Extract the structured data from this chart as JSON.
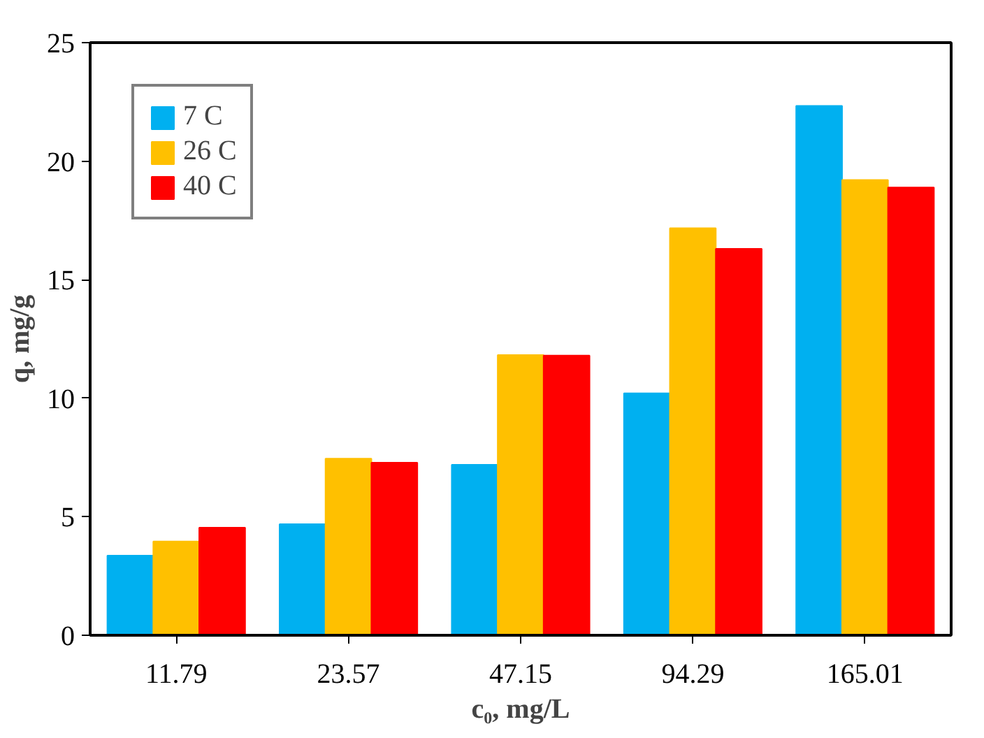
{
  "chart_data": {
    "type": "bar",
    "xlabel": "c₀, mg/L",
    "ylabel": "q, mg/g",
    "categories": [
      "11.79",
      "23.57",
      "47.15",
      "94.29",
      "165.01"
    ],
    "series": [
      {
        "name": "7 C",
        "color": "#00b0f0",
        "values": [
          3.36,
          4.69,
          7.19,
          10.21,
          22.33
        ]
      },
      {
        "name": "26 C",
        "color": "#ffc000",
        "values": [
          3.96,
          7.45,
          11.82,
          17.17,
          19.21
        ]
      },
      {
        "name": "40 C",
        "color": "#ff0000",
        "values": [
          4.54,
          7.28,
          11.8,
          16.3,
          18.89
        ]
      }
    ],
    "ylim": [
      0,
      25
    ],
    "yticks": [
      0,
      5,
      10,
      15,
      20,
      25
    ],
    "grid": false,
    "legend": "top left"
  }
}
